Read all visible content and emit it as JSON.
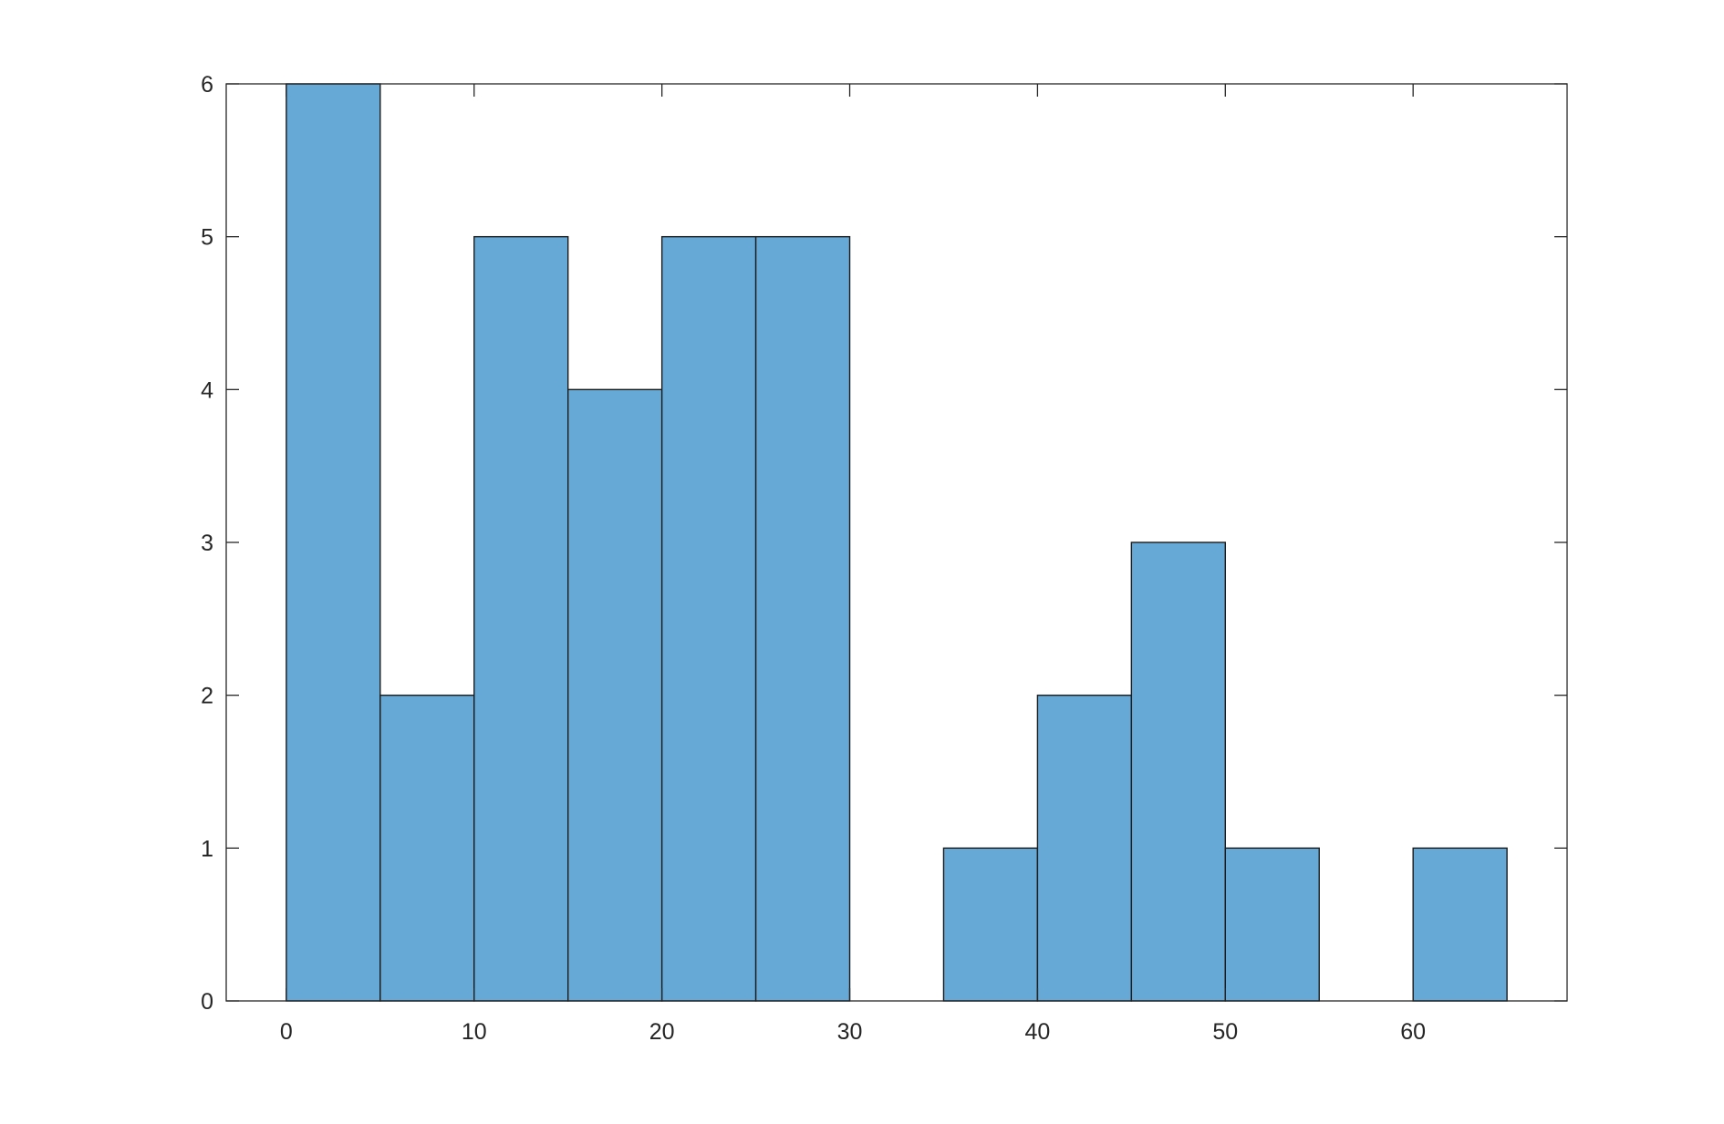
{
  "chart_data": {
    "type": "bar",
    "subtype": "histogram",
    "bin_width": 5,
    "bins": [
      {
        "start": 0,
        "end": 5,
        "count": 6
      },
      {
        "start": 5,
        "end": 10,
        "count": 2
      },
      {
        "start": 10,
        "end": 15,
        "count": 5
      },
      {
        "start": 15,
        "end": 20,
        "count": 4
      },
      {
        "start": 20,
        "end": 25,
        "count": 5
      },
      {
        "start": 25,
        "end": 30,
        "count": 5
      },
      {
        "start": 30,
        "end": 35,
        "count": 0
      },
      {
        "start": 35,
        "end": 40,
        "count": 1
      },
      {
        "start": 40,
        "end": 45,
        "count": 2
      },
      {
        "start": 45,
        "end": 50,
        "count": 3
      },
      {
        "start": 50,
        "end": 55,
        "count": 1
      },
      {
        "start": 55,
        "end": 60,
        "count": 0
      },
      {
        "start": 60,
        "end": 65,
        "count": 1
      }
    ],
    "xlim": [
      -3.2,
      68.2
    ],
    "ylim": [
      0,
      6
    ],
    "xticks": [
      0,
      10,
      20,
      30,
      40,
      50,
      60
    ],
    "yticks": [
      0,
      1,
      2,
      3,
      4,
      5,
      6
    ],
    "xtick_labels": [
      "0",
      "10",
      "20",
      "30",
      "40",
      "50",
      "60"
    ],
    "ytick_labels": [
      "0",
      "1",
      "2",
      "3",
      "4",
      "5",
      "6"
    ],
    "title": "",
    "xlabel": "",
    "ylabel": "",
    "grid": false,
    "legend": "none",
    "bar_color": "#66a9d6",
    "edge_color": "#1c1c1c",
    "axis_color": "#262626",
    "background_color": "#ffffff"
  }
}
